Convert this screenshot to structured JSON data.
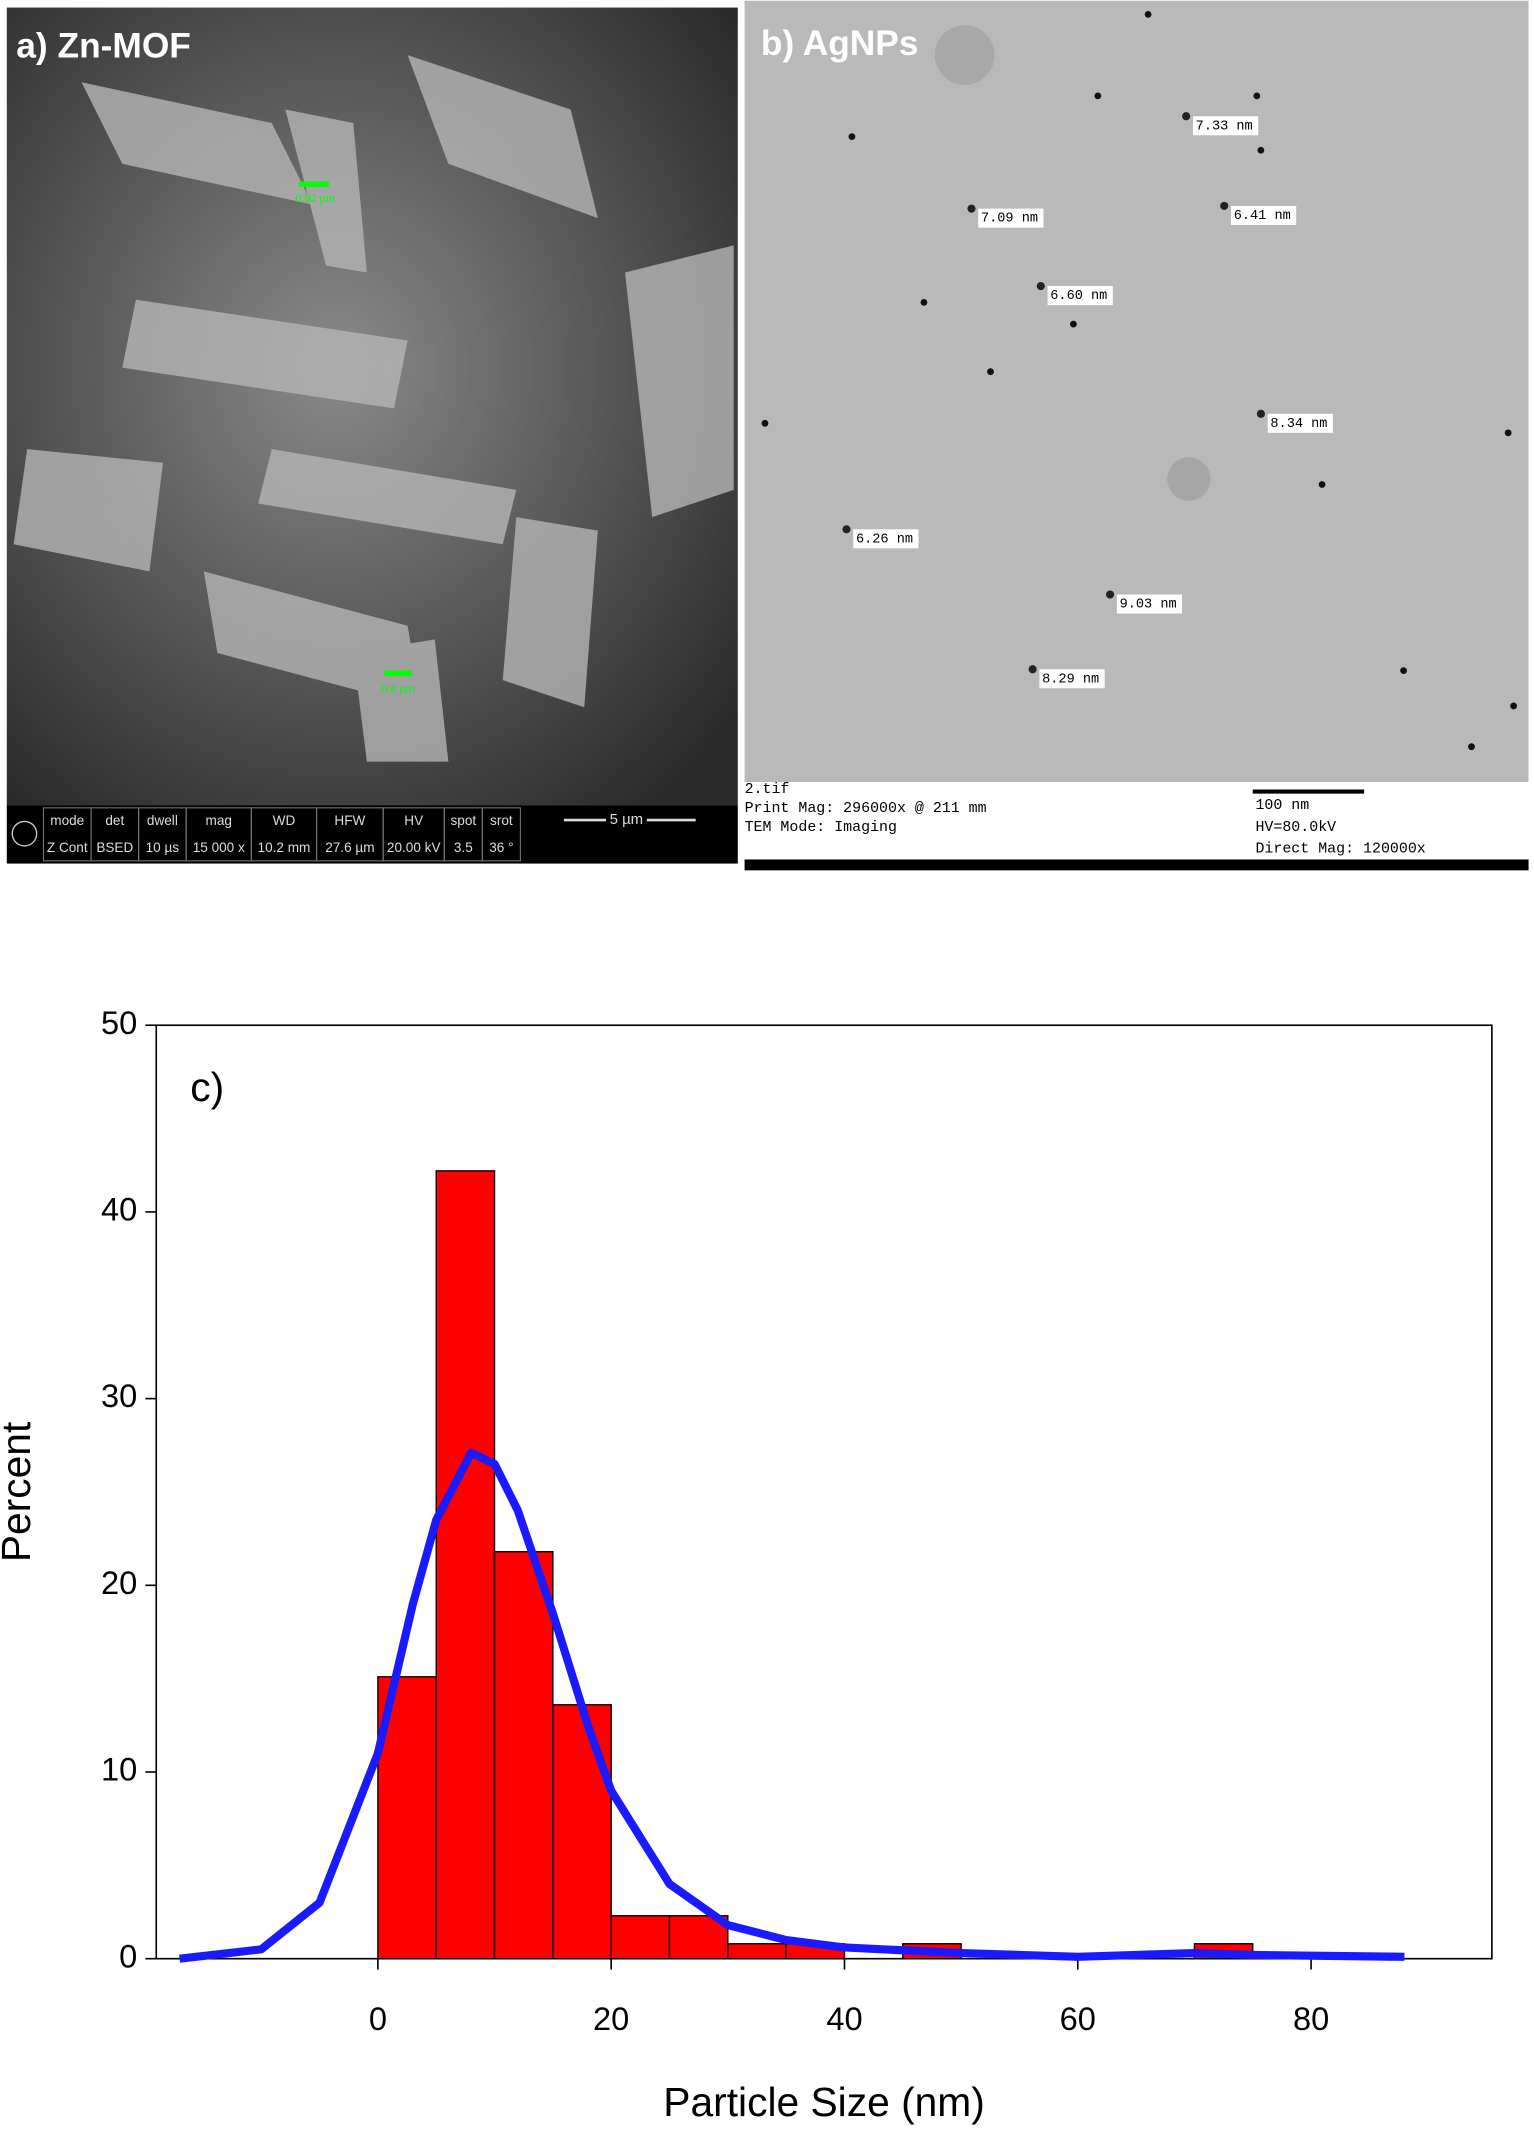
{
  "panel_a": {
    "label": "a) Zn-MOF",
    "measures": [
      "0.92 µm",
      "0.6 µm"
    ],
    "info_headers": [
      "mode",
      "det",
      "dwell",
      "mag",
      "WD",
      "HFW",
      "HV",
      "spot",
      "srot"
    ],
    "info_values": [
      "Z Cont",
      "BSED",
      "10 µs",
      "15 000 x",
      "10.2 mm",
      "27.6 µm",
      "20.00 kV",
      "3.5",
      "36 °"
    ],
    "scale": "5 µm"
  },
  "panel_b": {
    "label": "b) AgNPs",
    "measures": [
      "7.33 nm",
      "7.09 nm",
      "6.41 nm",
      "6.60 nm",
      "8.34 nm",
      "6.26 nm",
      "9.03 nm",
      "8.29 nm"
    ],
    "footer_left": [
      "2.tif",
      "Print Mag: 296000x @ 211 mm",
      "TEM Mode: Imaging"
    ],
    "scale": "100 nm",
    "footer_right": [
      "HV=80.0kV",
      "Direct Mag: 120000x"
    ]
  },
  "chart_data": {
    "type": "histogram",
    "annotation": "c)",
    "x_label": "Particle Size (nm)",
    "y_label": "Percent",
    "bins": [
      0,
      5,
      10,
      15,
      20,
      25,
      30,
      35,
      40,
      45,
      50,
      55,
      60,
      65,
      70,
      75
    ],
    "values": [
      15.1,
      42.2,
      21.8,
      13.6,
      2.3,
      2.3,
      0.8,
      0.8,
      0,
      0.8,
      0,
      0,
      0,
      0,
      0.8
    ],
    "color": "#ff0000",
    "curve": {
      "color": "#1a1aff",
      "x": [
        -17,
        -10,
        -5,
        0,
        3,
        5,
        8,
        10,
        12,
        15,
        18,
        20,
        25,
        30,
        35,
        40,
        50,
        60,
        70,
        75,
        88
      ],
      "values": [
        0,
        0.5,
        3,
        11,
        19,
        23.5,
        27.1,
        26.5,
        24,
        18.5,
        12.5,
        9,
        4,
        1.8,
        1,
        0.6,
        0.3,
        0.1,
        0.3,
        0.2,
        0.1
      ]
    },
    "xlim": [
      -19,
      95.5
    ],
    "ylim": [
      0,
      50
    ],
    "xticks": [
      0,
      20,
      40,
      60,
      80
    ],
    "yticks": [
      0,
      10,
      20,
      30,
      40,
      50
    ]
  }
}
